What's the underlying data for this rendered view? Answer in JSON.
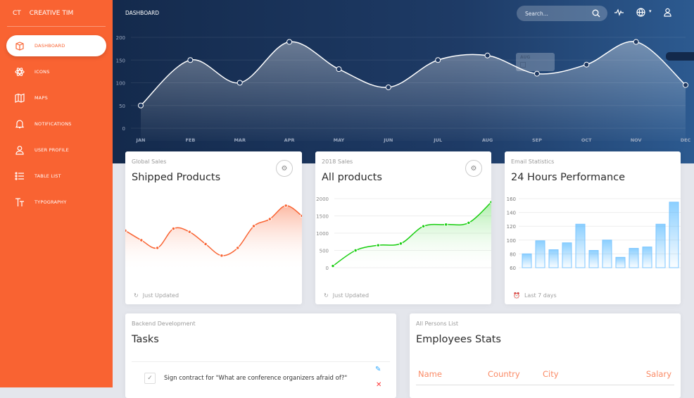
{
  "brand": {
    "short": "CT",
    "name": "CREATIVE TIM"
  },
  "sidebar": {
    "items": [
      {
        "label": "DASHBOARD",
        "icon": "cube-icon",
        "active": true
      },
      {
        "label": "ICONS",
        "icon": "atom-icon"
      },
      {
        "label": "MAPS",
        "icon": "map-icon"
      },
      {
        "label": "NOTIFICATIONS",
        "icon": "bell-icon"
      },
      {
        "label": "USER PROFILE",
        "icon": "user-icon"
      },
      {
        "label": "TABLE LIST",
        "icon": "list-icon"
      },
      {
        "label": "TYPOGRAPHY",
        "icon": "text-icon"
      }
    ]
  },
  "header": {
    "title": "DASHBOARD",
    "search_placeholder": "Search..."
  },
  "tooltip": {
    "label": "AUG"
  },
  "colors": {
    "accent": "#f96332",
    "green": "#18ce0f",
    "blue": "#2ca8ff",
    "navy": "#1e3b66"
  },
  "chart_data": [
    {
      "type": "area",
      "name": "main",
      "categories": [
        "JAN",
        "FEB",
        "MAR",
        "APR",
        "MAY",
        "JUN",
        "JUL",
        "AUG",
        "SEP",
        "OCT",
        "NOV",
        "DEC"
      ],
      "values": [
        50,
        150,
        100,
        190,
        130,
        90,
        150,
        160,
        120,
        140,
        190,
        95
      ],
      "yticks": [
        0,
        50,
        100,
        150,
        200
      ],
      "ylim": [
        0,
        200
      ]
    },
    {
      "type": "area",
      "name": "shipped",
      "values": [
        59,
        44,
        32,
        62,
        57,
        38,
        20,
        32,
        66,
        77,
        98,
        82
      ],
      "ylim": [
        0,
        110
      ]
    },
    {
      "type": "area",
      "name": "all-products",
      "values": [
        50,
        500,
        650,
        700,
        1200,
        1250,
        1300,
        1900
      ],
      "yticks": [
        0,
        500,
        1000,
        1500,
        2000
      ],
      "ylim": [
        0,
        2000
      ]
    },
    {
      "type": "bar",
      "name": "email",
      "values": [
        80,
        99,
        86,
        96,
        123,
        85,
        100,
        75,
        88,
        90,
        123,
        155
      ],
      "yticks": [
        60,
        80,
        100,
        120,
        140,
        160
      ],
      "ylim": [
        60,
        160
      ]
    }
  ],
  "cards": [
    {
      "category": "Global Sales",
      "title": "Shipped Products",
      "footer": "Just Updated"
    },
    {
      "category": "2018 Sales",
      "title": "All products",
      "footer": "Just Updated"
    },
    {
      "category": "Email Statistics",
      "title": "24 Hours Performance",
      "footer": "Last 7 days"
    }
  ],
  "tasks": {
    "category": "Backend Development",
    "title": "Tasks",
    "items": [
      {
        "text": "Sign contract for \"What are conference organizers afraid of?\"",
        "checked": true
      }
    ]
  },
  "employees": {
    "category": "All Persons List",
    "title": "Employees Stats",
    "columns": [
      "Name",
      "Country",
      "City",
      "Salary"
    ]
  }
}
